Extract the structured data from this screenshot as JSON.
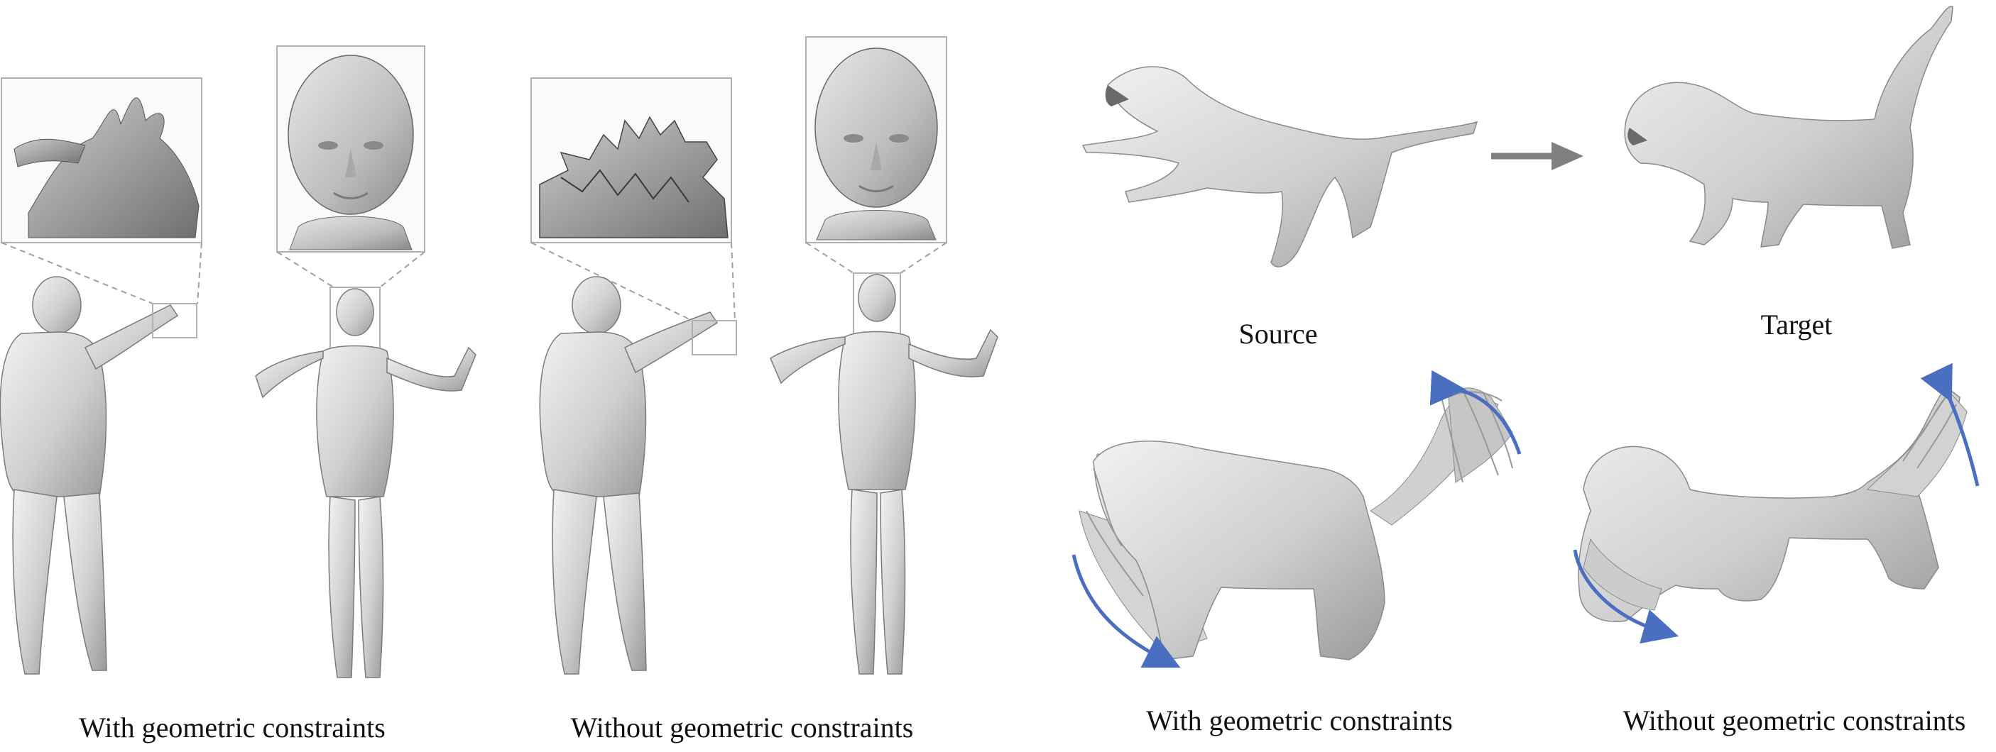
{
  "figure": {
    "left_panel": {
      "caption_with": "With geometric constraints",
      "caption_without": "Without geometric constraints"
    },
    "right_panel": {
      "source_label": "Source",
      "target_label": "Target",
      "caption_with": "With geometric constraints",
      "caption_without": "Without geometric constraints"
    },
    "colors": {
      "mesh_fill": "#d9d9d9",
      "mesh_shade": "#a8a8a8",
      "mesh_stroke": "#7a7a7a",
      "inset_border": "#b0b0b0",
      "connector": "#a0a0a0",
      "arrow": "#808080",
      "motion_arc": "#4a6fc1"
    }
  }
}
